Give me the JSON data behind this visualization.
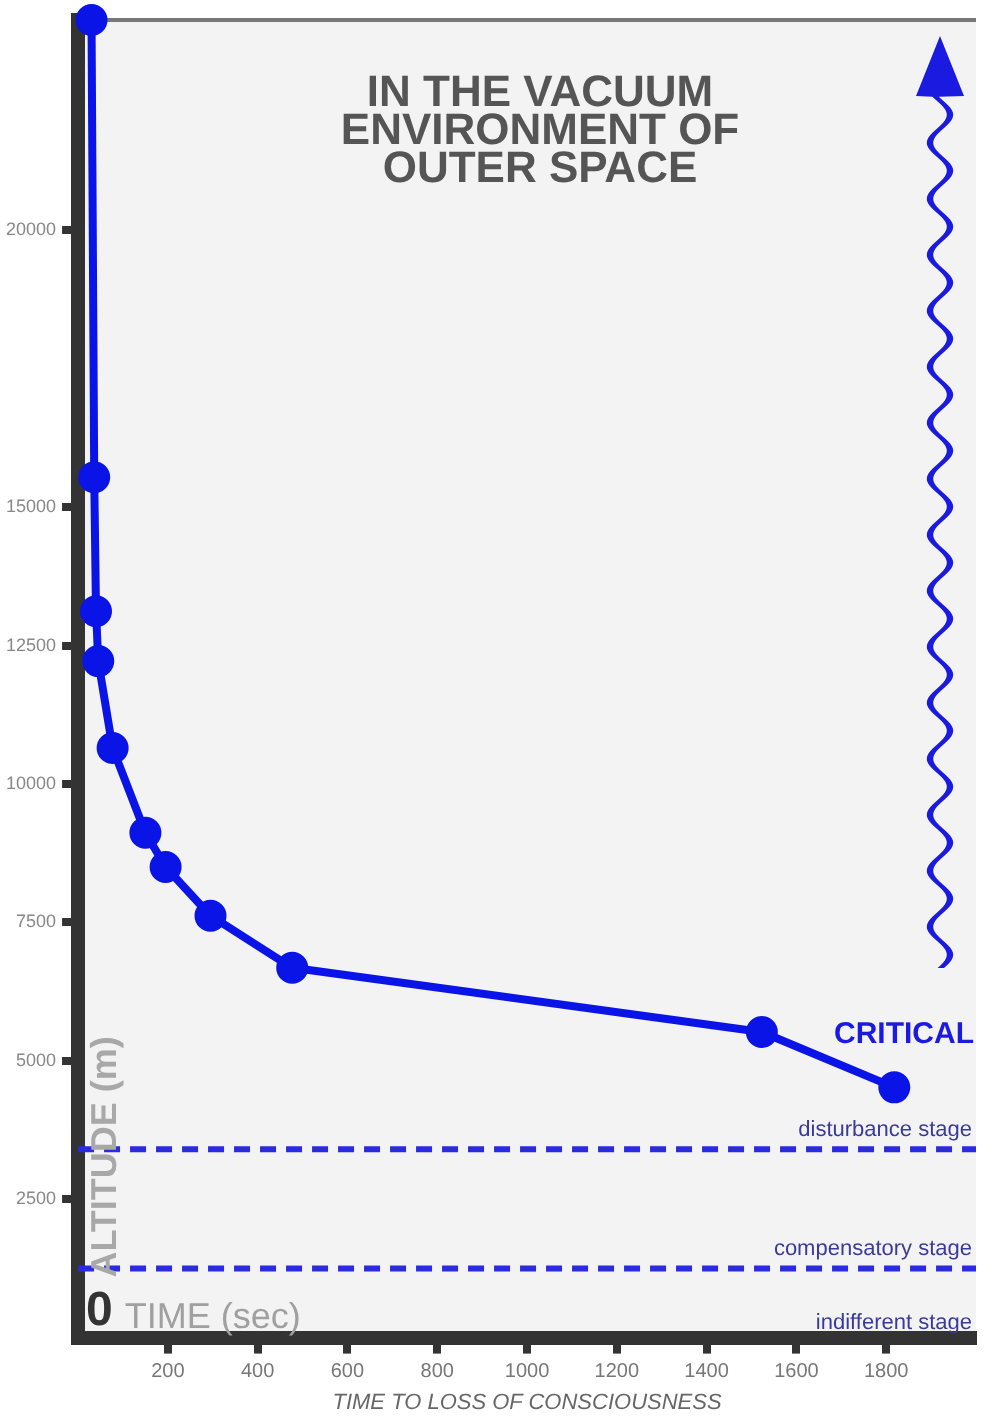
{
  "chart_data": {
    "type": "line",
    "title": "IN THE VACUUM ENVIRONMENT OF OUTER SPACE",
    "xlabel": "TIME TO LOSS OF CONSCIOUSNESS",
    "ylabel": "ALTITUDE (m)",
    "series": [
      {
        "color": "#0a14e6",
        "x": [
          30,
          36,
          40,
          45,
          77,
          150,
          195,
          295,
          477,
          1523,
          1818
        ],
        "values": [
          23800,
          15540,
          13120,
          12220,
          10650,
          9120,
          8500,
          7620,
          6680,
          5520,
          4520
        ]
      }
    ],
    "marker": "circle",
    "line_style": "solid",
    "legend": false,
    "xlim": [
      0,
      2000
    ],
    "xticks": [
      200,
      400,
      600,
      800,
      1000,
      1200,
      1400,
      1600,
      1800
    ],
    "ylim": [
      0,
      23800
    ],
    "yticks": [
      2500,
      5000,
      7500,
      10000,
      12500,
      15000,
      20000
    ],
    "ref_lines": [
      {
        "axis": "y",
        "value": 3400,
        "color": "#2a2ae0",
        "line_style": "dashed",
        "label": "disturbance stage"
      },
      {
        "axis": "y",
        "value": 1250,
        "color": "#2a2ae0",
        "line_style": "dashed",
        "label": "compensatory stage"
      }
    ],
    "annotations": [
      "0",
      "TIME (sec)",
      "CRITICAL",
      "indifferent stage"
    ]
  }
}
